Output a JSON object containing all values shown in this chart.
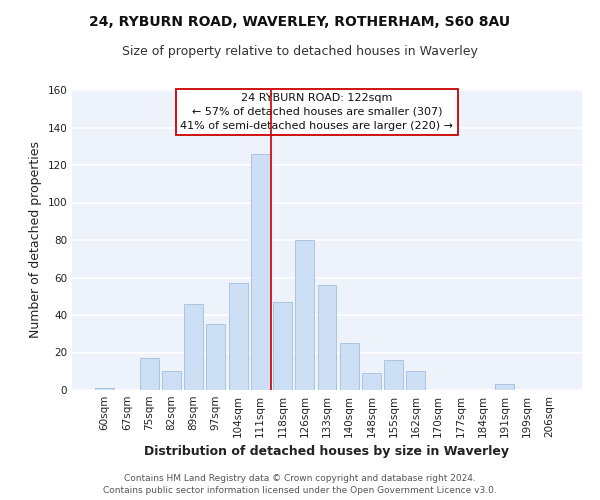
{
  "title1": "24, RYBURN ROAD, WAVERLEY, ROTHERHAM, S60 8AU",
  "title2": "Size of property relative to detached houses in Waverley",
  "xlabel": "Distribution of detached houses by size in Waverley",
  "ylabel": "Number of detached properties",
  "bar_color": "#ccdff5",
  "bar_edge_color": "#aac4e0",
  "bin_labels": [
    "60sqm",
    "67sqm",
    "75sqm",
    "82sqm",
    "89sqm",
    "97sqm",
    "104sqm",
    "111sqm",
    "118sqm",
    "126sqm",
    "133sqm",
    "140sqm",
    "148sqm",
    "155sqm",
    "162sqm",
    "170sqm",
    "177sqm",
    "184sqm",
    "191sqm",
    "199sqm",
    "206sqm"
  ],
  "bar_heights": [
    1,
    0,
    17,
    10,
    46,
    35,
    57,
    126,
    47,
    80,
    56,
    25,
    9,
    16,
    10,
    0,
    0,
    0,
    3,
    0,
    0
  ],
  "ylim": [
    0,
    160
  ],
  "yticks": [
    0,
    20,
    40,
    60,
    80,
    100,
    120,
    140,
    160
  ],
  "vline_x_index": 8,
  "vline_color": "#cc0000",
  "annotation_title": "24 RYBURN ROAD: 122sqm",
  "annotation_line1": "← 57% of detached houses are smaller (307)",
  "annotation_line2": "41% of semi-detached houses are larger (220) →",
  "annotation_box_color": "#ffffff",
  "annotation_box_edge": "#cc0000",
  "footer1": "Contains HM Land Registry data © Crown copyright and database right 2024.",
  "footer2": "Contains public sector information licensed under the Open Government Licence v3.0.",
  "plot_bg_color": "#eef2fa",
  "fig_bg_color": "#ffffff",
  "grid_color": "#ffffff",
  "title_fontsize": 10,
  "subtitle_fontsize": 9,
  "axis_label_fontsize": 9,
  "tick_fontsize": 7.5,
  "annotation_fontsize": 8,
  "footer_fontsize": 6.5
}
